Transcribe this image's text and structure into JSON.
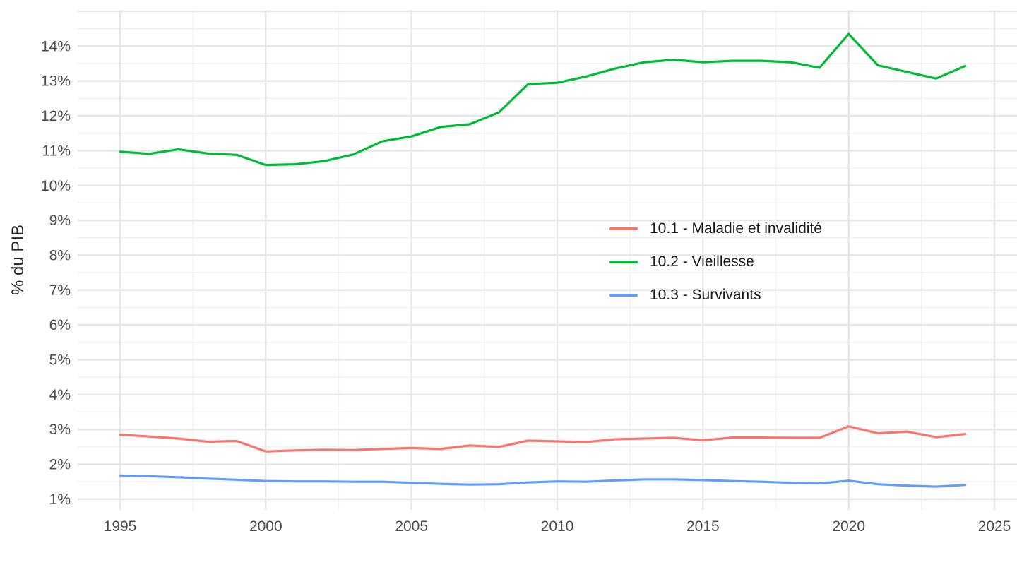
{
  "chart_data": {
    "type": "line",
    "title": "",
    "xlabel": "",
    "ylabel": "% du PIB",
    "grid": "major and minor gridlines, light gray on white, no axis lines",
    "legend_position": "inside plot, center-right",
    "xlim": [
      1993.5,
      2025.8
    ],
    "ylim": [
      0.65,
      15.08
    ],
    "x_ticks": {
      "values": [
        1995,
        2000,
        2005,
        2010,
        2015,
        2020,
        2025
      ],
      "labels": [
        "1995",
        "2000",
        "2005",
        "2010",
        "2015",
        "2020",
        "2025"
      ]
    },
    "y_ticks": {
      "values": [
        1,
        2,
        3,
        4,
        5,
        6,
        7,
        8,
        9,
        10,
        11,
        12,
        13,
        14
      ],
      "labels": [
        "1%",
        "2%",
        "3%",
        "4%",
        "5%",
        "6%",
        "7%",
        "8%",
        "9%",
        "10%",
        "11%",
        "12%",
        "13%",
        "14%"
      ]
    },
    "x": [
      1995,
      1996,
      1997,
      1998,
      1999,
      2000,
      2001,
      2002,
      2003,
      2004,
      2005,
      2006,
      2007,
      2008,
      2009,
      2010,
      2011,
      2012,
      2013,
      2014,
      2015,
      2016,
      2017,
      2018,
      2019,
      2020,
      2021,
      2022,
      2023,
      2024
    ],
    "series": [
      {
        "name": "10.1 - Maladie et invalidité",
        "color": "#F8766D",
        "values": [
          2.85,
          2.8,
          2.74,
          2.65,
          2.67,
          2.37,
          2.4,
          2.42,
          2.41,
          2.44,
          2.47,
          2.44,
          2.54,
          2.5,
          2.68,
          2.66,
          2.64,
          2.72,
          2.74,
          2.76,
          2.69,
          2.77,
          2.77,
          2.76,
          2.76,
          3.09,
          2.89,
          2.94,
          2.78,
          2.87
        ]
      },
      {
        "name": "10.2 - Vieillesse",
        "color": "#00BA38",
        "values": [
          10.97,
          10.91,
          11.04,
          10.92,
          10.88,
          10.59,
          10.61,
          10.7,
          10.89,
          11.27,
          11.41,
          11.68,
          11.76,
          12.1,
          12.91,
          12.95,
          13.13,
          13.36,
          13.54,
          13.61,
          13.54,
          13.58,
          13.58,
          13.54,
          13.38,
          14.35,
          13.45,
          13.26,
          13.07,
          13.43
        ]
      },
      {
        "name": "10.3 - Survivants",
        "color": "#619CFF",
        "values": [
          1.68,
          1.66,
          1.63,
          1.59,
          1.56,
          1.52,
          1.51,
          1.51,
          1.5,
          1.5,
          1.47,
          1.44,
          1.42,
          1.43,
          1.48,
          1.51,
          1.5,
          1.54,
          1.57,
          1.57,
          1.55,
          1.52,
          1.5,
          1.47,
          1.45,
          1.53,
          1.43,
          1.39,
          1.36,
          1.41
        ]
      }
    ],
    "colors": {
      "background": "#FFFFFF",
      "gridline_major": "#E7E7E7",
      "gridline_minor": "#F2F2F2",
      "tick_text": "#4D4D4D",
      "axis_title_text": "#262626",
      "legend_text": "#1A1A1A"
    }
  }
}
